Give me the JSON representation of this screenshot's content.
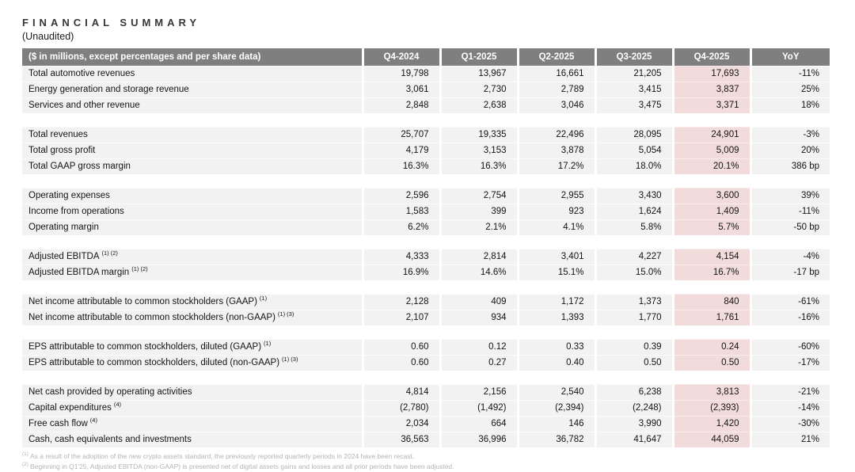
{
  "title": "FINANCIAL SUMMARY",
  "subtitle": "(Unaudited)",
  "colors": {
    "header_bg": "#7f7f7f",
    "header_text": "#ffffff",
    "row_bg": "#f2f2f2",
    "highlight_bg": "#f2dcdb",
    "footnote_text": "#b3b3b3"
  },
  "table": {
    "label_header": "($ in millions, except percentages and per share data)",
    "columns": [
      "Q4-2024",
      "Q1-2025",
      "Q2-2025",
      "Q3-2025",
      "Q4-2025",
      "YoY"
    ],
    "highlight_column": "Q4-2025",
    "sections": [
      {
        "rows": [
          {
            "label": "Total automotive revenues",
            "sup": "",
            "values": [
              "19,798",
              "13,967",
              "16,661",
              "21,205",
              "17,693",
              "-11%"
            ]
          },
          {
            "label": "Energy generation and storage revenue",
            "sup": "",
            "values": [
              "3,061",
              "2,730",
              "2,789",
              "3,415",
              "3,837",
              "25%"
            ]
          },
          {
            "label": "Services and other revenue",
            "sup": "",
            "values": [
              "2,848",
              "2,638",
              "3,046",
              "3,475",
              "3,371",
              "18%"
            ]
          }
        ]
      },
      {
        "rows": [
          {
            "label": "Total revenues",
            "sup": "",
            "values": [
              "25,707",
              "19,335",
              "22,496",
              "28,095",
              "24,901",
              "-3%"
            ]
          },
          {
            "label": "Total gross profit",
            "sup": "",
            "values": [
              "4,179",
              "3,153",
              "3,878",
              "5,054",
              "5,009",
              "20%"
            ]
          },
          {
            "label": "Total GAAP gross margin",
            "sup": "",
            "values": [
              "16.3%",
              "16.3%",
              "17.2%",
              "18.0%",
              "20.1%",
              "386 bp"
            ]
          }
        ]
      },
      {
        "rows": [
          {
            "label": "Operating expenses",
            "sup": "",
            "values": [
              "2,596",
              "2,754",
              "2,955",
              "3,430",
              "3,600",
              "39%"
            ]
          },
          {
            "label": "Income from operations",
            "sup": "",
            "values": [
              "1,583",
              "399",
              "923",
              "1,624",
              "1,409",
              "-11%"
            ]
          },
          {
            "label": "Operating margin",
            "sup": "",
            "values": [
              "6.2%",
              "2.1%",
              "4.1%",
              "5.8%",
              "5.7%",
              "-50 bp"
            ]
          }
        ]
      },
      {
        "rows": [
          {
            "label": "Adjusted EBITDA",
            "sup": "(1) (2)",
            "values": [
              "4,333",
              "2,814",
              "3,401",
              "4,227",
              "4,154",
              "-4%"
            ]
          },
          {
            "label": "Adjusted EBITDA margin",
            "sup": "(1) (2)",
            "values": [
              "16.9%",
              "14.6%",
              "15.1%",
              "15.0%",
              "16.7%",
              "-17 bp"
            ]
          }
        ]
      },
      {
        "rows": [
          {
            "label": "Net income attributable to common stockholders (GAAP)",
            "sup": "(1)",
            "values": [
              "2,128",
              "409",
              "1,172",
              "1,373",
              "840",
              "-61%"
            ]
          },
          {
            "label": "Net income attributable to common stockholders (non-GAAP)",
            "sup": "(1) (3)",
            "values": [
              "2,107",
              "934",
              "1,393",
              "1,770",
              "1,761",
              "-16%"
            ]
          }
        ]
      },
      {
        "rows": [
          {
            "label": "EPS attributable to common stockholders, diluted (GAAP)",
            "sup": "(1)",
            "values": [
              "0.60",
              "0.12",
              "0.33",
              "0.39",
              "0.24",
              "-60%"
            ]
          },
          {
            "label": "EPS attributable to common stockholders, diluted (non-GAAP)",
            "sup": "(1) (3)",
            "values": [
              "0.60",
              "0.27",
              "0.40",
              "0.50",
              "0.50",
              "-17%"
            ]
          }
        ]
      },
      {
        "rows": [
          {
            "label": "Net cash provided by operating activities",
            "sup": "",
            "values": [
              "4,814",
              "2,156",
              "2,540",
              "6,238",
              "3,813",
              "-21%"
            ]
          },
          {
            "label": "Capital expenditures",
            "sup": "(4)",
            "values": [
              "(2,780)",
              "(1,492)",
              "(2,394)",
              "(2,248)",
              "(2,393)",
              "-14%"
            ]
          },
          {
            "label": "Free cash flow",
            "sup": "(4)",
            "values": [
              "2,034",
              "664",
              "146",
              "3,990",
              "1,420",
              "-30%"
            ]
          },
          {
            "label": "Cash, cash equivalents and investments",
            "sup": "",
            "values": [
              "36,563",
              "36,996",
              "36,782",
              "41,647",
              "44,059",
              "21%"
            ]
          }
        ]
      }
    ]
  },
  "footnotes": [
    {
      "marker": "(1)",
      "text": "As a result of the adoption of the new crypto assets standard, the previously reported quarterly periods in 2024 have been recast."
    },
    {
      "marker": "(2)",
      "text": "Beginning in Q1'25, Adjusted EBITDA (non-GAAP) is presented net of digital assets gains and losses and all prior periods have been adjusted."
    }
  ]
}
